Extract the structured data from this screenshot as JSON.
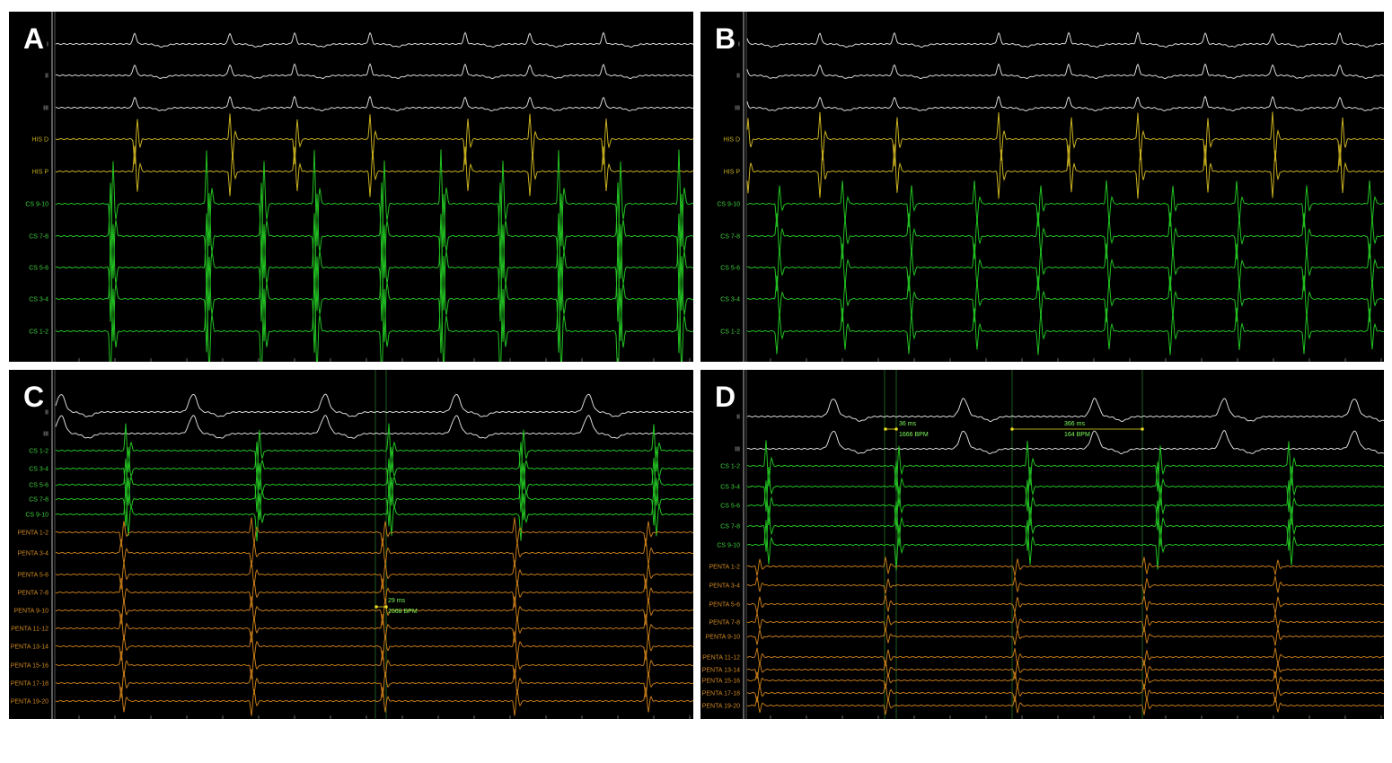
{
  "colors": {
    "white": "#d8d8d8",
    "yellow": "#c8b020",
    "green": "#22c022",
    "orange": "#c07818",
    "label_green": "#3cd03c",
    "label_orange": "#d08820",
    "label_white": "#bbbbbb",
    "measure": "#7CFC5A",
    "marker": "#e8d820"
  },
  "panels": [
    {
      "letter": "A",
      "channels": [
        {
          "label": "I",
          "color": "white"
        },
        {
          "label": "II",
          "color": "white"
        },
        {
          "label": "III",
          "color": "white"
        },
        {
          "label": "HIS D",
          "color": "yellow"
        },
        {
          "label": "HIS P",
          "color": "yellow"
        },
        {
          "label": "CS 9-10",
          "color": "green"
        },
        {
          "label": "CS 7-8",
          "color": "green"
        },
        {
          "label": "CS 5-6",
          "color": "green"
        },
        {
          "label": "CS 3-4",
          "color": "green"
        },
        {
          "label": "CS 1-2",
          "color": "green"
        }
      ],
      "measurements": []
    },
    {
      "letter": "B",
      "channels": [
        {
          "label": "I",
          "color": "white"
        },
        {
          "label": "II",
          "color": "white"
        },
        {
          "label": "III",
          "color": "white"
        },
        {
          "label": "HIS D",
          "color": "yellow"
        },
        {
          "label": "HIS P",
          "color": "yellow"
        },
        {
          "label": "CS 9-10",
          "color": "green"
        },
        {
          "label": "CS 7-8",
          "color": "green"
        },
        {
          "label": "CS 5-6",
          "color": "green"
        },
        {
          "label": "CS 3-4",
          "color": "green"
        },
        {
          "label": "CS 1-2",
          "color": "green"
        }
      ],
      "measurements": []
    },
    {
      "letter": "C",
      "channels": [
        {
          "label": "II",
          "color": "white"
        },
        {
          "label": "III",
          "color": "white"
        },
        {
          "label": "CS 1-2",
          "color": "green"
        },
        {
          "label": "CS 3-4",
          "color": "green"
        },
        {
          "label": "CS 5-6",
          "color": "green"
        },
        {
          "label": "CS 7-8",
          "color": "green"
        },
        {
          "label": "CS 9-10",
          "color": "green"
        },
        {
          "label": "PENTA 1-2",
          "color": "orange"
        },
        {
          "label": "PENTA 3-4",
          "color": "orange"
        },
        {
          "label": "PENTA 5-6",
          "color": "orange"
        },
        {
          "label": "PENTA 7-8",
          "color": "orange"
        },
        {
          "label": "PENTA 9-10",
          "color": "orange"
        },
        {
          "label": "PENTA 11-12",
          "color": "orange"
        },
        {
          "label": "PENTA 13-14",
          "color": "orange"
        },
        {
          "label": "PENTA 15-16",
          "color": "orange"
        },
        {
          "label": "PENTA 17-18",
          "color": "orange"
        },
        {
          "label": "PENTA 19-20",
          "color": "orange"
        }
      ],
      "measurements": [
        {
          "ms": "29 ms",
          "bpm": "2068 BPM"
        }
      ]
    },
    {
      "letter": "D",
      "channels": [
        {
          "label": "II",
          "color": "white"
        },
        {
          "label": "III",
          "color": "white"
        },
        {
          "label": "CS 1-2",
          "color": "green"
        },
        {
          "label": "CS 3-4",
          "color": "green"
        },
        {
          "label": "CS 5-6",
          "color": "green"
        },
        {
          "label": "CS 7-8",
          "color": "green"
        },
        {
          "label": "CS 9-10",
          "color": "green"
        },
        {
          "label": "PENTA 1-2",
          "color": "orange"
        },
        {
          "label": "PENTA 3-4",
          "color": "orange"
        },
        {
          "label": "PENTA 5-6",
          "color": "orange"
        },
        {
          "label": "PENTA 7-8",
          "color": "orange"
        },
        {
          "label": "PENTA 9-10",
          "color": "orange"
        },
        {
          "label": "PENTA 11-12",
          "color": "orange"
        },
        {
          "label": "PENTA 13-14",
          "color": "orange"
        },
        {
          "label": "PENTA 15-16",
          "color": "orange"
        },
        {
          "label": "PENTA 17-18",
          "color": "orange"
        },
        {
          "label": "PENTA 19-20",
          "color": "orange"
        }
      ],
      "measurements": [
        {
          "ms": "36 ms",
          "bpm": "1666 BPM"
        },
        {
          "ms": "366 ms",
          "bpm": "164 BPM"
        }
      ]
    }
  ]
}
